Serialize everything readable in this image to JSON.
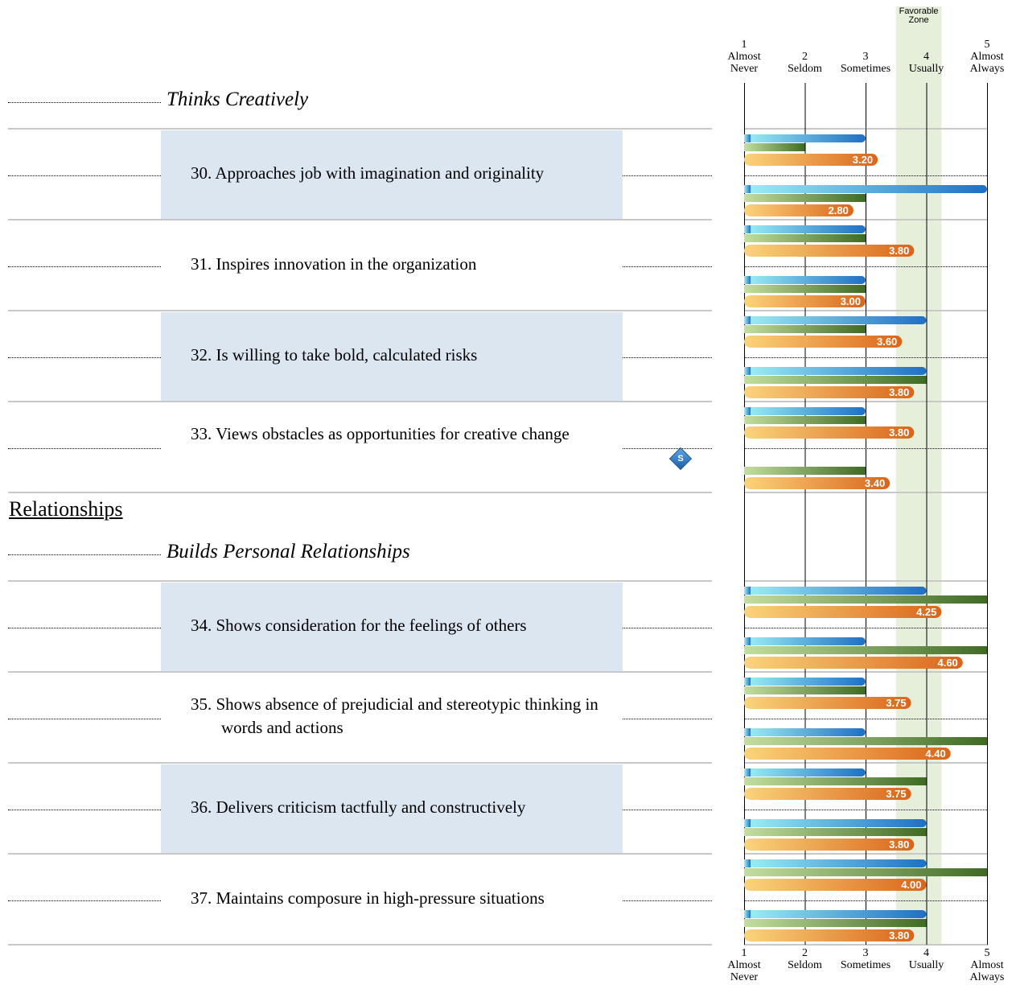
{
  "chart_data": {
    "type": "bar",
    "favorable_zone_label": [
      "Favorable",
      "Zone"
    ],
    "scale": [
      {
        "value": 1,
        "label": [
          "1",
          "Almost",
          "Never"
        ]
      },
      {
        "value": 2,
        "label": [
          "2",
          "Seldom"
        ]
      },
      {
        "value": 3,
        "label": [
          "3",
          "Sometimes"
        ]
      },
      {
        "value": 4,
        "label": [
          "4",
          "Usually"
        ]
      },
      {
        "value": 5,
        "label": [
          "5",
          "Almost",
          "Always"
        ]
      }
    ],
    "xlim": [
      1,
      5
    ],
    "favorable_zone": [
      3.5,
      4.25
    ],
    "series_colors": {
      "blue": [
        "#9ef0f5",
        "#1f6fc4"
      ],
      "green": [
        "#c3dea0",
        "#3f6a24"
      ],
      "orange": [
        "#fbd47c",
        "#d9651a"
      ]
    },
    "groups": [
      {
        "kind": "category",
        "title": "Thinks Creatively"
      },
      {
        "kind": "item",
        "label": "30. Approaches job with imagination and originality",
        "shaded": true,
        "bars": [
          {
            "series": "blue",
            "value": 3
          },
          {
            "series": "green",
            "value": 2
          },
          {
            "series": "orange",
            "value": 3.2,
            "label": "3.20"
          },
          {
            "series": "blue",
            "value": 5
          },
          {
            "series": "green",
            "value": 3
          },
          {
            "series": "orange",
            "value": 2.8,
            "label": "2.80"
          }
        ]
      },
      {
        "kind": "item",
        "label": "31. Inspires innovation in the organization",
        "shaded": false,
        "bars": [
          {
            "series": "blue",
            "value": 3
          },
          {
            "series": "green",
            "value": 3
          },
          {
            "series": "orange",
            "value": 3.8,
            "label": "3.80"
          },
          {
            "series": "blue",
            "value": 3
          },
          {
            "series": "green",
            "value": 3
          },
          {
            "series": "orange",
            "value": 3.0,
            "label": "3.00"
          }
        ]
      },
      {
        "kind": "item",
        "label": "32. Is willing to take bold, calculated risks",
        "shaded": true,
        "bars": [
          {
            "series": "blue",
            "value": 4
          },
          {
            "series": "green",
            "value": 3
          },
          {
            "series": "orange",
            "value": 3.6,
            "label": "3.60"
          },
          {
            "series": "blue",
            "value": 4
          },
          {
            "series": "green",
            "value": 4
          },
          {
            "series": "orange",
            "value": 3.8,
            "label": "3.80"
          }
        ]
      },
      {
        "kind": "item",
        "label": "33. Views obstacles as opportunities for creative change",
        "shaded": false,
        "badge": "S",
        "bars": [
          {
            "series": "blue",
            "value": 3
          },
          {
            "series": "green",
            "value": 3
          },
          {
            "series": "orange",
            "value": 3.8,
            "label": "3.80"
          },
          {
            "series": "blue",
            "value": null
          },
          {
            "series": "green",
            "value": 3
          },
          {
            "series": "orange",
            "value": 3.4,
            "label": "3.40"
          }
        ]
      },
      {
        "kind": "section",
        "title": "Relationships"
      },
      {
        "kind": "category",
        "title": "Builds Personal Relationships"
      },
      {
        "kind": "item",
        "label": "34. Shows consideration for the feelings of others",
        "shaded": true,
        "bars": [
          {
            "series": "blue",
            "value": 4
          },
          {
            "series": "green",
            "value": 5
          },
          {
            "series": "orange",
            "value": 4.25,
            "label": "4.25"
          },
          {
            "series": "blue",
            "value": 3
          },
          {
            "series": "green",
            "value": 5
          },
          {
            "series": "orange",
            "value": 4.6,
            "label": "4.60"
          }
        ]
      },
      {
        "kind": "item",
        "label": "35. Shows absence of prejudicial and stereotypic thinking in words and actions",
        "shaded": false,
        "bars": [
          {
            "series": "blue",
            "value": 3
          },
          {
            "series": "green",
            "value": 3
          },
          {
            "series": "orange",
            "value": 3.75,
            "label": "3.75"
          },
          {
            "series": "blue",
            "value": 3
          },
          {
            "series": "green",
            "value": 5
          },
          {
            "series": "orange",
            "value": 4.4,
            "label": "4.40"
          }
        ]
      },
      {
        "kind": "item",
        "label": "36. Delivers criticism tactfully and constructively",
        "shaded": true,
        "bars": [
          {
            "series": "blue",
            "value": 3
          },
          {
            "series": "green",
            "value": 4
          },
          {
            "series": "orange",
            "value": 3.75,
            "label": "3.75"
          },
          {
            "series": "blue",
            "value": 4
          },
          {
            "series": "green",
            "value": 4
          },
          {
            "series": "orange",
            "value": 3.8,
            "label": "3.80"
          }
        ]
      },
      {
        "kind": "item",
        "label": "37. Maintains composure in high-pressure situations",
        "shaded": false,
        "bars": [
          {
            "series": "blue",
            "value": 4
          },
          {
            "series": "green",
            "value": 5
          },
          {
            "series": "orange",
            "value": 4.0,
            "label": "4.00"
          },
          {
            "series": "blue",
            "value": 4
          },
          {
            "series": "green",
            "value": 4
          },
          {
            "series": "orange",
            "value": 3.8,
            "label": "3.80"
          }
        ]
      }
    ]
  }
}
